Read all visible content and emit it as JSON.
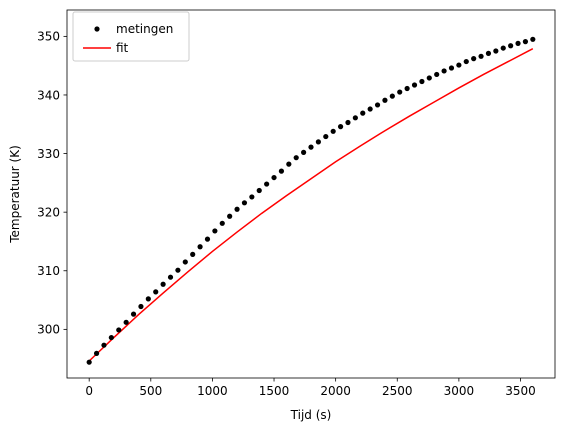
{
  "chart_data": {
    "type": "scatter",
    "title": "",
    "xlabel": "Tijd (s)",
    "ylabel": "Temperatuur (K)",
    "xlim": [
      -180,
      3780
    ],
    "ylim": [
      291.7,
      354.5
    ],
    "xticks": [
      0,
      500,
      1000,
      1500,
      2000,
      2500,
      3000,
      3500
    ],
    "yticks": [
      300,
      310,
      320,
      330,
      340,
      350
    ],
    "grid": false,
    "legend": "top-left",
    "series": [
      {
        "name": "metingen",
        "kind": "markers",
        "color": "#000000",
        "x": [
          0,
          60,
          120,
          180,
          240,
          300,
          360,
          420,
          480,
          540,
          600,
          660,
          720,
          780,
          840,
          900,
          960,
          1020,
          1080,
          1140,
          1200,
          1260,
          1320,
          1380,
          1440,
          1500,
          1560,
          1620,
          1680,
          1740,
          1800,
          1860,
          1920,
          1980,
          2040,
          2100,
          2160,
          2220,
          2280,
          2340,
          2400,
          2460,
          2520,
          2580,
          2640,
          2700,
          2760,
          2820,
          2880,
          2940,
          3000,
          3060,
          3120,
          3180,
          3240,
          3300,
          3360,
          3420,
          3480,
          3540,
          3600
        ],
        "y": [
          294.4,
          295.9,
          297.3,
          298.6,
          299.9,
          301.2,
          302.6,
          303.9,
          305.2,
          306.4,
          307.7,
          308.9,
          310.1,
          311.5,
          312.8,
          314.1,
          315.4,
          316.8,
          318.1,
          319.3,
          320.5,
          321.6,
          322.6,
          323.7,
          324.8,
          325.9,
          327.0,
          328.2,
          329.3,
          330.2,
          331.1,
          332.0,
          332.9,
          333.8,
          334.6,
          335.3,
          336.1,
          336.9,
          337.6,
          338.3,
          339.1,
          339.8,
          340.5,
          341.1,
          341.7,
          342.3,
          342.9,
          343.5,
          344.1,
          344.6,
          345.1,
          345.7,
          346.2,
          346.6,
          347.1,
          347.5,
          348.0,
          348.4,
          348.8,
          349.1,
          349.5
        ]
      },
      {
        "name": "fit",
        "kind": "line",
        "color": "#ff0000",
        "x": [
          0,
          200,
          400,
          600,
          800,
          1000,
          1200,
          1400,
          1600,
          1800,
          2000,
          2200,
          2400,
          2600,
          2800,
          3000,
          3200,
          3400,
          3600
        ],
        "y": [
          294.6,
          298.6,
          302.5,
          306.2,
          309.8,
          313.3,
          316.6,
          319.8,
          322.8,
          325.7,
          328.6,
          331.3,
          333.9,
          336.4,
          338.8,
          341.2,
          343.5,
          345.7,
          347.9
        ]
      }
    ]
  }
}
